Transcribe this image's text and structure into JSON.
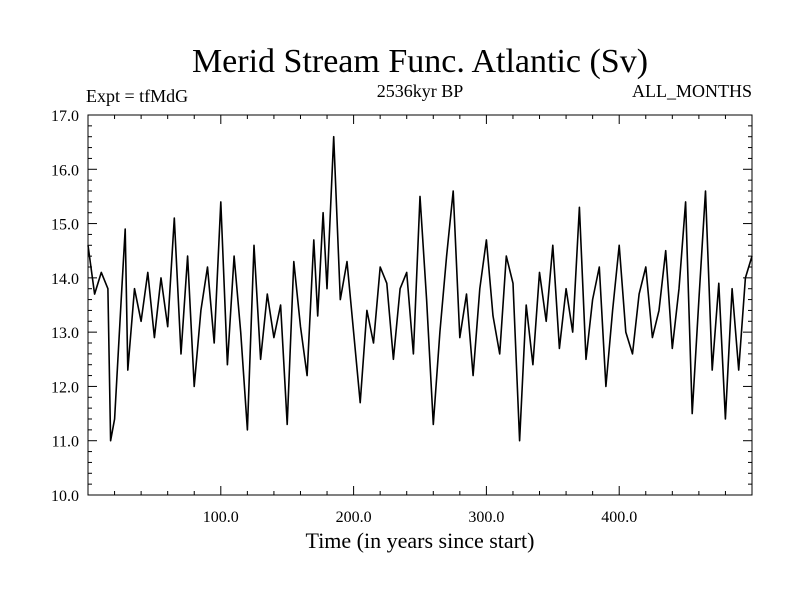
{
  "chart_data": {
    "type": "line",
    "title": "Merid Stream Func. Atlantic (Sv)",
    "subtitle_left": "Expt = tfMdG",
    "subtitle_center": "2536kyr BP",
    "subtitle_right": "ALL_MONTHS",
    "xlabel": "Time (in years since start)",
    "ylabel": "",
    "xlim": [
      0,
      500
    ],
    "ylim": [
      10.0,
      17.0
    ],
    "x_ticks": [
      100,
      200,
      300,
      400
    ],
    "x_tick_labels": [
      "100.0",
      "200.0",
      "300.0",
      "400.0"
    ],
    "y_ticks": [
      10,
      11,
      12,
      13,
      14,
      15,
      16,
      17
    ],
    "y_tick_labels": [
      "10.0",
      "11.0",
      "12.0",
      "13.0",
      "14.0",
      "15.0",
      "16.0",
      "17.0"
    ],
    "grid": false,
    "series": [
      {
        "name": "Merid Stream Func. Atlantic",
        "color": "#000000",
        "x": [
          0,
          5,
          10,
          15,
          17,
          20,
          25,
          28,
          30,
          35,
          40,
          45,
          50,
          55,
          60,
          65,
          70,
          75,
          80,
          85,
          90,
          95,
          100,
          105,
          110,
          115,
          120,
          125,
          130,
          135,
          140,
          145,
          150,
          155,
          160,
          165,
          170,
          173,
          177,
          180,
          185,
          190,
          195,
          200,
          205,
          210,
          215,
          220,
          225,
          230,
          235,
          240,
          245,
          250,
          255,
          260,
          265,
          270,
          275,
          280,
          285,
          290,
          295,
          300,
          305,
          310,
          315,
          320,
          325,
          330,
          335,
          340,
          345,
          350,
          355,
          360,
          365,
          370,
          375,
          380,
          385,
          390,
          395,
          400,
          405,
          410,
          415,
          420,
          425,
          430,
          435,
          440,
          445,
          450,
          455,
          460,
          465,
          470,
          475,
          480,
          485,
          490,
          495,
          500
        ],
        "values": [
          14.6,
          13.7,
          14.1,
          13.8,
          11.0,
          11.4,
          13.6,
          14.9,
          12.3,
          13.8,
          13.2,
          14.1,
          12.9,
          14.0,
          13.1,
          15.1,
          12.6,
          14.4,
          12.0,
          13.4,
          14.2,
          12.8,
          15.4,
          12.4,
          14.4,
          13.0,
          11.2,
          14.6,
          12.5,
          13.7,
          12.9,
          13.5,
          11.3,
          14.3,
          13.1,
          12.2,
          14.7,
          13.3,
          15.2,
          13.8,
          16.6,
          13.6,
          14.3,
          13.0,
          11.7,
          13.4,
          12.8,
          14.2,
          13.9,
          12.5,
          13.8,
          14.1,
          12.6,
          15.5,
          13.6,
          11.3,
          13.0,
          14.4,
          15.6,
          12.9,
          13.7,
          12.2,
          13.8,
          14.7,
          13.3,
          12.6,
          14.4,
          13.9,
          11.0,
          13.5,
          12.4,
          14.1,
          13.2,
          14.6,
          12.7,
          13.8,
          13.0,
          15.3,
          12.5,
          13.6,
          14.2,
          12.0,
          13.4,
          14.6,
          13.0,
          12.6,
          13.7,
          14.2,
          12.9,
          13.4,
          14.5,
          12.7,
          13.8,
          15.4,
          11.5,
          13.6,
          15.6,
          12.3,
          13.9,
          11.4,
          13.8,
          12.3,
          14.0,
          14.4
        ]
      }
    ]
  }
}
